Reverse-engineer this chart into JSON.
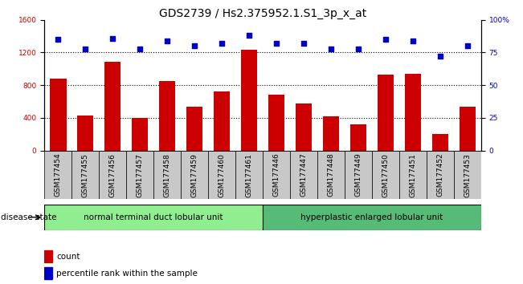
{
  "title": "GDS2739 / Hs2.375952.1.S1_3p_x_at",
  "samples": [
    "GSM177454",
    "GSM177455",
    "GSM177456",
    "GSM177457",
    "GSM177458",
    "GSM177459",
    "GSM177460",
    "GSM177461",
    "GSM177446",
    "GSM177447",
    "GSM177448",
    "GSM177449",
    "GSM177450",
    "GSM177451",
    "GSM177452",
    "GSM177453"
  ],
  "counts": [
    880,
    430,
    1090,
    400,
    850,
    540,
    720,
    1230,
    680,
    580,
    415,
    320,
    930,
    940,
    200,
    540
  ],
  "percentiles": [
    85,
    78,
    86,
    78,
    84,
    80,
    82,
    88,
    82,
    82,
    78,
    78,
    85,
    84,
    72,
    80
  ],
  "group1_label": "normal terminal duct lobular unit",
  "group2_label": "hyperplastic enlarged lobular unit",
  "group1_count": 8,
  "group2_count": 8,
  "bar_color": "#cc0000",
  "dot_color": "#0000cc",
  "group1_color": "#90ee90",
  "group2_color": "#55bb77",
  "xtick_bg_color": "#c8c8c8",
  "disease_state_label": "disease state",
  "legend_count_label": "count",
  "legend_percentile_label": "percentile rank within the sample",
  "ylim_left": [
    0,
    1600
  ],
  "ylim_right": [
    0,
    100
  ],
  "yticks_left": [
    0,
    400,
    800,
    1200,
    1600
  ],
  "yticks_right": [
    0,
    25,
    50,
    75,
    100
  ],
  "grid_values": [
    400,
    800,
    1200
  ],
  "title_fontsize": 10,
  "tick_fontsize": 6.5,
  "label_fontsize": 7.5
}
